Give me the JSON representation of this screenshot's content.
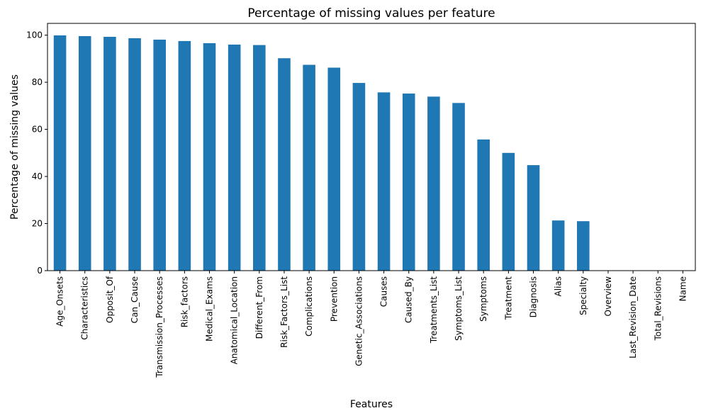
{
  "chart_data": {
    "type": "bar",
    "title": "Percentage of missing values per feature",
    "xlabel": "Features",
    "ylabel": "Percentage of missing values",
    "ylim": [
      0,
      105
    ],
    "yticks": [
      0,
      20,
      40,
      60,
      80,
      100
    ],
    "grid": false,
    "legend": "none",
    "bar_color": "#1f77b4",
    "categories": [
      "Age_Onsets",
      "Characteristics",
      "Opposit_Of",
      "Can_Cause",
      "Transmission_Processes",
      "Risk_factors",
      "Medical_Exams",
      "Anatomical_Location",
      "Different_From",
      "Risk_Factors_List",
      "Complications",
      "Prevention",
      "Genetic_Associations",
      "Causes",
      "Caused_By",
      "Treatments_List",
      "Symptoms_List",
      "Symptoms",
      "Treatment",
      "Diagnosis",
      "Alias",
      "Specialty",
      "Overview",
      "Last_Revision_Date",
      "Total_Revisions",
      "Name"
    ],
    "values": [
      99.9,
      99.6,
      99.3,
      98.7,
      98.1,
      97.5,
      96.6,
      96.0,
      95.8,
      90.2,
      87.4,
      86.2,
      79.7,
      75.7,
      75.2,
      73.9,
      71.2,
      55.7,
      50.0,
      44.8,
      21.3,
      21.0,
      0,
      0,
      0,
      0
    ]
  }
}
